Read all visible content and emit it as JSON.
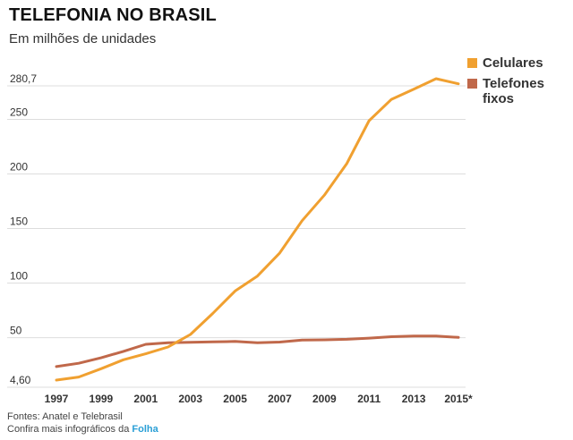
{
  "header": {
    "title": "TELEFONIA NO BRASIL",
    "subtitle": "Em milhões de unidades"
  },
  "footer": {
    "sources": "Fontes: Anatel e Telebrasil",
    "more_prefix": "Confira mais infográficos da",
    "brand": "Folha"
  },
  "colors": {
    "celulares": "#f0a030",
    "fixos": "#c0684a",
    "grid": "#dddddd"
  },
  "chart_data": {
    "type": "line",
    "title": "TELEFONIA NO BRASIL",
    "subtitle": "Em milhões de unidades",
    "ylim": [
      4.6,
      280.7
    ],
    "y_ticks": [
      {
        "value": 4.6,
        "label": "4,60"
      },
      {
        "value": 50,
        "label": "50"
      },
      {
        "value": 100,
        "label": "100"
      },
      {
        "value": 150,
        "label": "150"
      },
      {
        "value": 200,
        "label": "200"
      },
      {
        "value": 250,
        "label": "250"
      },
      {
        "value": 280.7,
        "label": "280,7"
      }
    ],
    "x_tick_labels": [
      "1997",
      "1999",
      "2001",
      "2003",
      "2005",
      "2007",
      "2009",
      "2011",
      "2013",
      "2015*"
    ],
    "x": [
      1997,
      1998,
      1999,
      2000,
      2001,
      2002,
      2003,
      2004,
      2005,
      2006,
      2007,
      2008,
      2009,
      2010,
      2011,
      2012,
      2013,
      2014,
      2015
    ],
    "xlim": [
      1997,
      2015
    ],
    "grid": true,
    "legend_position": "top-right",
    "series": [
      {
        "name": "Celulares",
        "values": [
          4.6,
          7.4,
          15.0,
          23.2,
          28.7,
          34.9,
          46.4,
          65.6,
          86.2,
          99.9,
          121.0,
          150.6,
          174.0,
          202.9,
          242.2,
          261.8,
          271.1,
          280.7,
          276.0
        ]
      },
      {
        "name": "Telefones fixos",
        "values": [
          17.0,
          20.0,
          25.0,
          30.9,
          37.4,
          38.8,
          39.2,
          39.6,
          40.0,
          38.8,
          39.4,
          41.2,
          41.5,
          42.0,
          43.0,
          44.3,
          44.9,
          45.0,
          43.7
        ]
      }
    ]
  }
}
